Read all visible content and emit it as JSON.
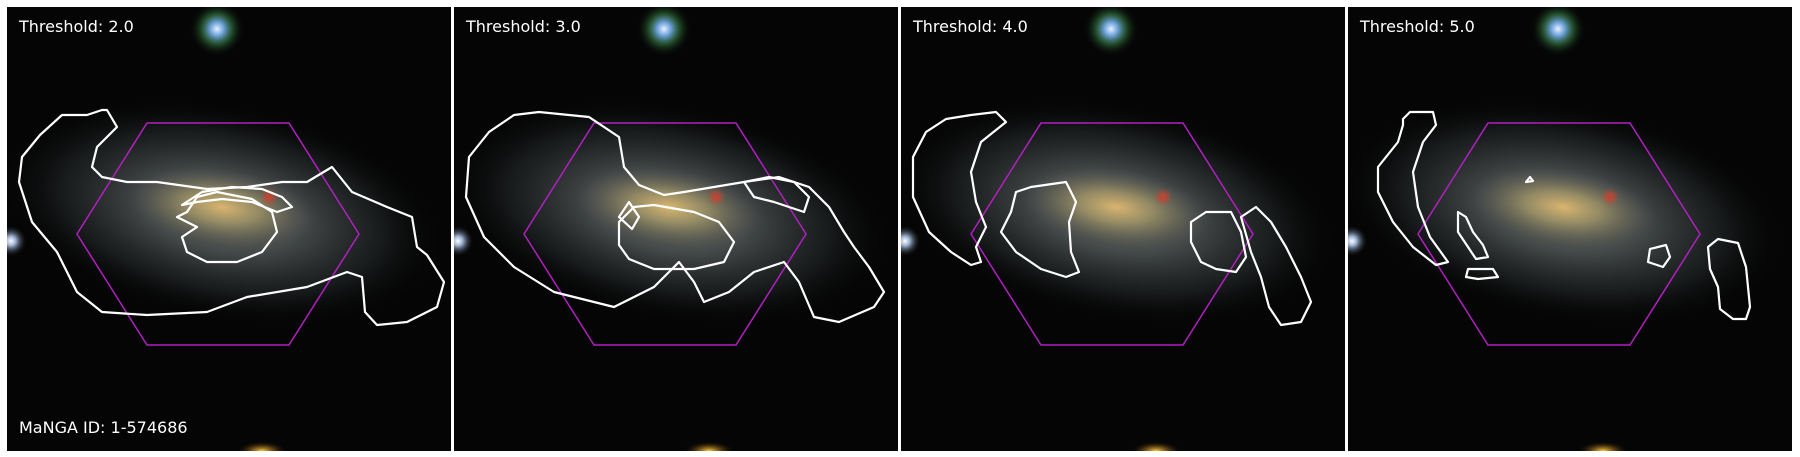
{
  "panels": [
    {
      "threshold_label": "Threshold: 2.0"
    },
    {
      "threshold_label": "Threshold: 3.0"
    },
    {
      "threshold_label": "Threshold: 4.0"
    },
    {
      "threshold_label": "Threshold: 5.0"
    }
  ],
  "manga_id_label": "MaNGA ID: 1-574686",
  "colors": {
    "contour": "#ffffff",
    "hexagon": "#b020c0",
    "background": "#000000",
    "separator": "#ffffff"
  }
}
